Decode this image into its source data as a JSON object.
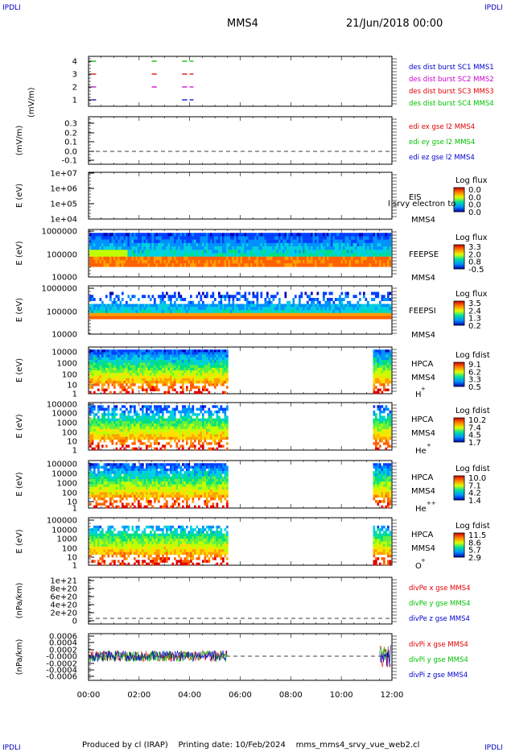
{
  "header": {
    "corner_left_top": "IPDLI",
    "corner_right_top": "IPDLI",
    "title": "MMS4",
    "datetime": "21/Jun/2018 00:00",
    "corner_left_bottom": "IPDLI",
    "corner_right_bottom": "IPDLI"
  },
  "footer": {
    "produced_by": "Produced by cl (IRAP)",
    "printing_date": "Printing date: 10/Feb/2024",
    "file": "mms_mms4_srvy_vue_web2.cl"
  },
  "colors": {
    "red": "#e00000",
    "magenta": "#d000d0",
    "blue": "#0000d0",
    "green": "#00c000",
    "frame": "#000000"
  },
  "chart_data": {
    "type": "heatmap",
    "x_axis": {
      "ticks": [
        "00:00",
        "02:00",
        "04:00",
        "06:00",
        "08:00",
        "10:00",
        "12:00"
      ],
      "range_hours": [
        0,
        12
      ]
    },
    "panels": [
      {
        "id": "burst",
        "yticks": [
          "4",
          "3",
          "2",
          "1"
        ],
        "ylabel": "",
        "legend": [
          {
            "text": "des dist burst SC1 MMS1",
            "color": "#0000d0"
          },
          {
            "text": "des dist burst SC2 MMS2",
            "color": "#d000d0"
          },
          {
            "text": "des dist burst SC3 MMS3",
            "color": "#e00000"
          },
          {
            "text": "des dist burst SC4 MMS4",
            "color": "#00c000"
          }
        ],
        "series": [
          {
            "level": 4,
            "color": "#00c000",
            "intervals_hours": [
              [
                0.15,
                0.3
              ],
              [
                2.5,
                2.7
              ],
              [
                3.7,
                3.9
              ],
              [
                4.0,
                4.15
              ]
            ]
          },
          {
            "level": 3,
            "color": "#e00000",
            "intervals_hours": [
              [
                0.15,
                0.3
              ],
              [
                2.5,
                2.7
              ],
              [
                3.7,
                3.9
              ],
              [
                4.0,
                4.15
              ]
            ]
          },
          {
            "level": 2,
            "color": "#d000d0",
            "intervals_hours": [
              [
                0.15,
                0.3
              ],
              [
                2.5,
                2.7
              ],
              [
                3.7,
                3.9
              ],
              [
                4.0,
                4.15
              ]
            ]
          },
          {
            "level": 1,
            "color": "#0000d0",
            "intervals_hours": [
              [
                0.15,
                0.3
              ],
              [
                3.7,
                3.9
              ],
              [
                4.0,
                4.15
              ]
            ]
          }
        ]
      },
      {
        "id": "edi",
        "ylabel": "(mV/m)",
        "yticks": [
          "0.3",
          "0.2",
          "0.1",
          "0.0",
          "-0.1"
        ],
        "ylim": [
          -0.1,
          0.35
        ],
        "zero_line": true,
        "legend": [
          {
            "text": "edi ex gse l2 MMS4",
            "color": "#e00000"
          },
          {
            "text": "edi ey gse l2 MMS4",
            "color": "#00c000"
          },
          {
            "text": "edi ez gse l2 MMS4",
            "color": "#0000d0"
          }
        ]
      },
      {
        "id": "eis",
        "ylabel": "E (eV)",
        "yticks": [
          "1e+07",
          "1e+06",
          "1e+05",
          "1e+04"
        ],
        "labels": [
          "EIS",
          "MMS4"
        ],
        "overlay_text": "l srvy electron to",
        "colorbar": {
          "title": "Log flux",
          "ticks": [
            "0.0",
            "0.0",
            "0.0",
            "0.0"
          ]
        }
      },
      {
        "id": "feepse",
        "ylabel": "E (eV)",
        "yticks": [
          "1000000",
          "100000",
          "10000"
        ],
        "labels": [
          "FEEPSE",
          "MMS4"
        ],
        "colorbar": {
          "title": "Log flux",
          "ticks": [
            "3.3",
            "2.0",
            "0.8",
            "-0.5"
          ]
        }
      },
      {
        "id": "feepsi",
        "ylabel": "E (eV)",
        "yticks": [
          "1000000",
          "100000",
          "10000"
        ],
        "labels": [
          "FEEPSI",
          "MMS4"
        ],
        "colorbar": {
          "title": "Log flux",
          "ticks": [
            "3.5",
            "2.4",
            "1.3",
            "0.2"
          ]
        }
      },
      {
        "id": "hpca_h",
        "ylabel": "E (eV)",
        "yticks": [
          "10000",
          "1000",
          "100",
          "10",
          "1"
        ],
        "labels": [
          "HPCA",
          "MMS4",
          "H",
          "+"
        ],
        "data_gap_hours": [
          5.5,
          11.2
        ],
        "colorbar": {
          "title": "Log fdist",
          "ticks": [
            "9.1",
            "6.2",
            "3.3",
            "0.5"
          ]
        }
      },
      {
        "id": "hpca_he",
        "ylabel": "E (eV)",
        "yticks": [
          "100000",
          "10000",
          "1000",
          "100",
          "10",
          "1"
        ],
        "labels": [
          "HPCA",
          "MMS4",
          "He",
          "+"
        ],
        "data_gap_hours": [
          5.5,
          11.2
        ],
        "colorbar": {
          "title": "Log fdist",
          "ticks": [
            "10.2",
            "7.4",
            "4.5",
            "1.7"
          ]
        }
      },
      {
        "id": "hpca_hepp",
        "ylabel": "E (eV)",
        "yticks": [
          "100000",
          "10000",
          "1000",
          "100",
          "10",
          "1"
        ],
        "labels": [
          "HPCA",
          "MMS4",
          "He",
          "++"
        ],
        "data_gap_hours": [
          5.5,
          11.2
        ],
        "colorbar": {
          "title": "Log fdist",
          "ticks": [
            "10.0",
            "7.1",
            "4.2",
            "1.4"
          ]
        }
      },
      {
        "id": "hpca_o",
        "ylabel": "E (eV)",
        "yticks": [
          "100000",
          "10000",
          "1000",
          "100",
          "10",
          "1"
        ],
        "labels": [
          "HPCA",
          "MMS4",
          "O",
          "+"
        ],
        "data_gap_hours": [
          5.5,
          11.2
        ],
        "colorbar": {
          "title": "Log fdist",
          "ticks": [
            "11.5",
            "8.6",
            "5.7",
            "2.9"
          ]
        }
      },
      {
        "id": "divpe",
        "ylabel": "(nPa/km)",
        "yticks": [
          "1e+21",
          "8e+20",
          "6e+20",
          "4e+20",
          "2e+20",
          "0"
        ],
        "zero_line": true,
        "legend": [
          {
            "text": "divPe x gse MMS4",
            "color": "#e00000"
          },
          {
            "text": "divPe y gse MMS4",
            "color": "#00c000"
          },
          {
            "text": "divPe z gse MMS4",
            "color": "#0000d0"
          }
        ]
      },
      {
        "id": "divpi",
        "ylabel": "(nPa/km)",
        "yticks": [
          "0.0006",
          "0.0004",
          "0.0002",
          "-0.0000",
          "-0.0002",
          "-0.0004",
          "-0.0006"
        ],
        "ylim": [
          -0.0007,
          0.0007
        ],
        "zero_line": true,
        "data_gap_hours": [
          5.5,
          11.5
        ],
        "legend": [
          {
            "text": "divPi x gse MMS4",
            "color": "#e00000"
          },
          {
            "text": "divPi y gse MMS4",
            "color": "#00c000"
          },
          {
            "text": "divPi z gse MMS4",
            "color": "#0000d0"
          }
        ]
      }
    ]
  }
}
